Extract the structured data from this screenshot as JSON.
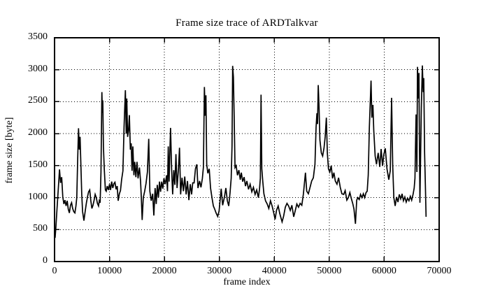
{
  "chart_data": {
    "type": "line",
    "title": "Frame size trace of ARDTalkvar",
    "xlabel": "frame index",
    "ylabel": "frame size [byte]",
    "xlim": [
      0,
      70000
    ],
    "ylim": [
      0,
      3500
    ],
    "xticks": [
      0,
      10000,
      20000,
      30000,
      40000,
      50000,
      60000,
      70000
    ],
    "yticks": [
      0,
      500,
      1000,
      1500,
      2000,
      2500,
      3000,
      3500
    ],
    "grid": "dotted",
    "legend_position": "none",
    "line_color": "#000000",
    "background_color": "#ffffff",
    "series_name": "frame size trace",
    "points": [
      [
        0,
        460
      ],
      [
        100,
        370
      ],
      [
        250,
        550
      ],
      [
        450,
        820
      ],
      [
        650,
        1090
      ],
      [
        900,
        1440
      ],
      [
        1100,
        1230
      ],
      [
        1300,
        1320
      ],
      [
        1500,
        1010
      ],
      [
        1700,
        900
      ],
      [
        1900,
        960
      ],
      [
        2100,
        870
      ],
      [
        2300,
        950
      ],
      [
        2500,
        820
      ],
      [
        2700,
        760
      ],
      [
        2900,
        880
      ],
      [
        3100,
        920
      ],
      [
        3300,
        830
      ],
      [
        3500,
        780
      ],
      [
        3700,
        760
      ],
      [
        3900,
        870
      ],
      [
        4050,
        1000
      ],
      [
        4200,
        1560
      ],
      [
        4370,
        2085
      ],
      [
        4500,
        1750
      ],
      [
        4650,
        1950
      ],
      [
        4800,
        1500
      ],
      [
        4950,
        1050
      ],
      [
        5100,
        780
      ],
      [
        5345,
        640
      ],
      [
        5600,
        800
      ],
      [
        5800,
        920
      ],
      [
        6000,
        1010
      ],
      [
        6200,
        1090
      ],
      [
        6400,
        1120
      ],
      [
        6600,
        950
      ],
      [
        6800,
        830
      ],
      [
        7000,
        880
      ],
      [
        7200,
        960
      ],
      [
        7400,
        1050
      ],
      [
        7600,
        1000
      ],
      [
        7800,
        910
      ],
      [
        8000,
        870
      ],
      [
        8150,
        950
      ],
      [
        8300,
        920
      ],
      [
        8450,
        1400
      ],
      [
        8610,
        2650
      ],
      [
        8700,
        2330
      ],
      [
        8780,
        2520
      ],
      [
        8900,
        1800
      ],
      [
        9050,
        1450
      ],
      [
        9250,
        1120
      ],
      [
        9400,
        1100
      ],
      [
        9600,
        1180
      ],
      [
        9800,
        1120
      ],
      [
        10000,
        1210
      ],
      [
        10200,
        1120
      ],
      [
        10400,
        1250
      ],
      [
        10600,
        1150
      ],
      [
        10800,
        1220
      ],
      [
        11000,
        1240
      ],
      [
        11200,
        1130
      ],
      [
        11400,
        1180
      ],
      [
        11580,
        950
      ],
      [
        11800,
        1060
      ],
      [
        12000,
        1110
      ],
      [
        12200,
        1280
      ],
      [
        12450,
        1420
      ],
      [
        12650,
        2100
      ],
      [
        12895,
        2680
      ],
      [
        13050,
        2000
      ],
      [
        13150,
        2550
      ],
      [
        13300,
        1950
      ],
      [
        13470,
        2050
      ],
      [
        13620,
        2290
      ],
      [
        13800,
        1750
      ],
      [
        13950,
        1850
      ],
      [
        14100,
        1420
      ],
      [
        14250,
        1800
      ],
      [
        14450,
        1350
      ],
      [
        14600,
        1560
      ],
      [
        14800,
        1320
      ],
      [
        15000,
        1560
      ],
      [
        15200,
        1300
      ],
      [
        15450,
        1470
      ],
      [
        15650,
        1260
      ],
      [
        15800,
        1000
      ],
      [
        15950,
        650
      ],
      [
        16150,
        1000
      ],
      [
        16400,
        1100
      ],
      [
        16650,
        1220
      ],
      [
        16900,
        1400
      ],
      [
        17140,
        1920
      ],
      [
        17350,
        1100
      ],
      [
        17600,
        950
      ],
      [
        17850,
        1060
      ],
      [
        18070,
        720
      ],
      [
        18300,
        1150
      ],
      [
        18500,
        900
      ],
      [
        18700,
        1200
      ],
      [
        18900,
        1000
      ],
      [
        19100,
        1250
      ],
      [
        19300,
        1090
      ],
      [
        19500,
        1250
      ],
      [
        19700,
        1140
      ],
      [
        19900,
        1300
      ],
      [
        20150,
        1210
      ],
      [
        20400,
        1350
      ],
      [
        20550,
        1100
      ],
      [
        20700,
        1800
      ],
      [
        20850,
        1250
      ],
      [
        21000,
        1750
      ],
      [
        21120,
        2090
      ],
      [
        21300,
        1450
      ],
      [
        21500,
        1050
      ],
      [
        21700,
        1430
      ],
      [
        21900,
        1200
      ],
      [
        22100,
        1680
      ],
      [
        22300,
        1150
      ],
      [
        22550,
        1450
      ],
      [
        22740,
        1780
      ],
      [
        22950,
        1050
      ],
      [
        23200,
        1310
      ],
      [
        23450,
        1100
      ],
      [
        23700,
        1330
      ],
      [
        23950,
        1050
      ],
      [
        24200,
        1260
      ],
      [
        24450,
        960
      ],
      [
        24700,
        1210
      ],
      [
        24950,
        1050
      ],
      [
        25150,
        1230
      ],
      [
        25400,
        1230
      ],
      [
        25650,
        1450
      ],
      [
        25900,
        1520
      ],
      [
        26100,
        1150
      ],
      [
        26400,
        1260
      ],
      [
        26650,
        1160
      ],
      [
        26900,
        1300
      ],
      [
        27100,
        1480
      ],
      [
        27280,
        2730
      ],
      [
        27430,
        2280
      ],
      [
        27550,
        2600
      ],
      [
        27700,
        1520
      ],
      [
        27900,
        1380
      ],
      [
        28150,
        1450
      ],
      [
        28400,
        1150
      ],
      [
        28650,
        1000
      ],
      [
        28900,
        870
      ],
      [
        29150,
        820
      ],
      [
        29400,
        760
      ],
      [
        29690,
        705
      ],
      [
        29950,
        790
      ],
      [
        30330,
        1140
      ],
      [
        30600,
        880
      ],
      [
        30900,
        1000
      ],
      [
        31180,
        1150
      ],
      [
        31450,
        950
      ],
      [
        31700,
        870
      ],
      [
        31950,
        1080
      ],
      [
        32150,
        1300
      ],
      [
        32300,
        1800
      ],
      [
        32420,
        3060
      ],
      [
        32560,
        2880
      ],
      [
        32700,
        2250
      ],
      [
        32850,
        1470
      ],
      [
        33050,
        1500
      ],
      [
        33300,
        1350
      ],
      [
        33550,
        1430
      ],
      [
        33800,
        1280
      ],
      [
        34000,
        1390
      ],
      [
        34250,
        1250
      ],
      [
        34500,
        1320
      ],
      [
        34750,
        1180
      ],
      [
        35000,
        1260
      ],
      [
        35300,
        1130
      ],
      [
        35600,
        1210
      ],
      [
        35900,
        1090
      ],
      [
        36200,
        1160
      ],
      [
        36500,
        1050
      ],
      [
        36800,
        1120
      ],
      [
        37100,
        1000
      ],
      [
        37300,
        1130
      ],
      [
        37450,
        1300
      ],
      [
        37585,
        2610
      ],
      [
        37720,
        1450
      ],
      [
        37900,
        1250
      ],
      [
        38100,
        1060
      ],
      [
        38400,
        950
      ],
      [
        38700,
        900
      ],
      [
        39000,
        830
      ],
      [
        39300,
        950
      ],
      [
        39600,
        870
      ],
      [
        39900,
        760
      ],
      [
        40140,
        660
      ],
      [
        40400,
        800
      ],
      [
        40700,
        870
      ],
      [
        41000,
        750
      ],
      [
        41410,
        620
      ],
      [
        41700,
        710
      ],
      [
        42000,
        850
      ],
      [
        42300,
        910
      ],
      [
        42600,
        870
      ],
      [
        42900,
        800
      ],
      [
        43200,
        880
      ],
      [
        43530,
        700
      ],
      [
        43800,
        790
      ],
      [
        44100,
        900
      ],
      [
        44400,
        850
      ],
      [
        44700,
        910
      ],
      [
        45000,
        880
      ],
      [
        45300,
        1060
      ],
      [
        45660,
        1390
      ],
      [
        45900,
        1100
      ],
      [
        46200,
        1060
      ],
      [
        46500,
        1160
      ],
      [
        46800,
        1260
      ],
      [
        47100,
        1310
      ],
      [
        47400,
        1520
      ],
      [
        47600,
        2100
      ],
      [
        47750,
        2320
      ],
      [
        47870,
        2150
      ],
      [
        48000,
        2760
      ],
      [
        48150,
        2400
      ],
      [
        48300,
        1900
      ],
      [
        48550,
        1700
      ],
      [
        48800,
        1650
      ],
      [
        49050,
        1780
      ],
      [
        49250,
        1950
      ],
      [
        49470,
        2250
      ],
      [
        49650,
        1700
      ],
      [
        49850,
        1450
      ],
      [
        50100,
        1400
      ],
      [
        50350,
        1500
      ],
      [
        50600,
        1300
      ],
      [
        50850,
        1390
      ],
      [
        51100,
        1260
      ],
      [
        51400,
        1210
      ],
      [
        51700,
        1310
      ],
      [
        52000,
        1160
      ],
      [
        52300,
        1060
      ],
      [
        52630,
        1050
      ],
      [
        52900,
        1110
      ],
      [
        53200,
        960
      ],
      [
        53470,
        1000
      ],
      [
        53750,
        1080
      ],
      [
        54000,
        990
      ],
      [
        54300,
        900
      ],
      [
        54500,
        820
      ],
      [
        54770,
        590
      ],
      [
        55000,
        960
      ],
      [
        55200,
        1000
      ],
      [
        55450,
        970
      ],
      [
        55700,
        1050
      ],
      [
        55950,
        1000
      ],
      [
        56200,
        1060
      ],
      [
        56450,
        1000
      ],
      [
        56700,
        1080
      ],
      [
        56900,
        1100
      ],
      [
        57100,
        1350
      ],
      [
        57300,
        2100
      ],
      [
        57600,
        2830
      ],
      [
        57750,
        2250
      ],
      [
        57950,
        2450
      ],
      [
        58100,
        2050
      ],
      [
        58350,
        1650
      ],
      [
        58600,
        1520
      ],
      [
        58900,
        1700
      ],
      [
        59200,
        1480
      ],
      [
        59440,
        1760
      ],
      [
        59700,
        1500
      ],
      [
        59950,
        1680
      ],
      [
        60200,
        1770
      ],
      [
        60500,
        1450
      ],
      [
        60840,
        1280
      ],
      [
        61100,
        1420
      ],
      [
        61350,
        2560
      ],
      [
        61550,
        1500
      ],
      [
        61750,
        1000
      ],
      [
        62000,
        870
      ],
      [
        62250,
        1010
      ],
      [
        62500,
        930
      ],
      [
        62750,
        1050
      ],
      [
        63000,
        980
      ],
      [
        63250,
        1060
      ],
      [
        63500,
        950
      ],
      [
        63750,
        1010
      ],
      [
        64000,
        930
      ],
      [
        64250,
        990
      ],
      [
        64500,
        950
      ],
      [
        64750,
        1020
      ],
      [
        65000,
        960
      ],
      [
        65250,
        1050
      ],
      [
        65450,
        1150
      ],
      [
        65600,
        1300
      ],
      [
        65800,
        2300
      ],
      [
        65950,
        1400
      ],
      [
        66054,
        3045
      ],
      [
        66200,
        2550
      ],
      [
        66320,
        2950
      ],
      [
        66500,
        920
      ],
      [
        66750,
        2400
      ],
      [
        66945,
        3067
      ],
      [
        67100,
        2650
      ],
      [
        67200,
        2870
      ],
      [
        67350,
        1700
      ],
      [
        67500,
        1150
      ],
      [
        67620,
        700
      ]
    ]
  }
}
